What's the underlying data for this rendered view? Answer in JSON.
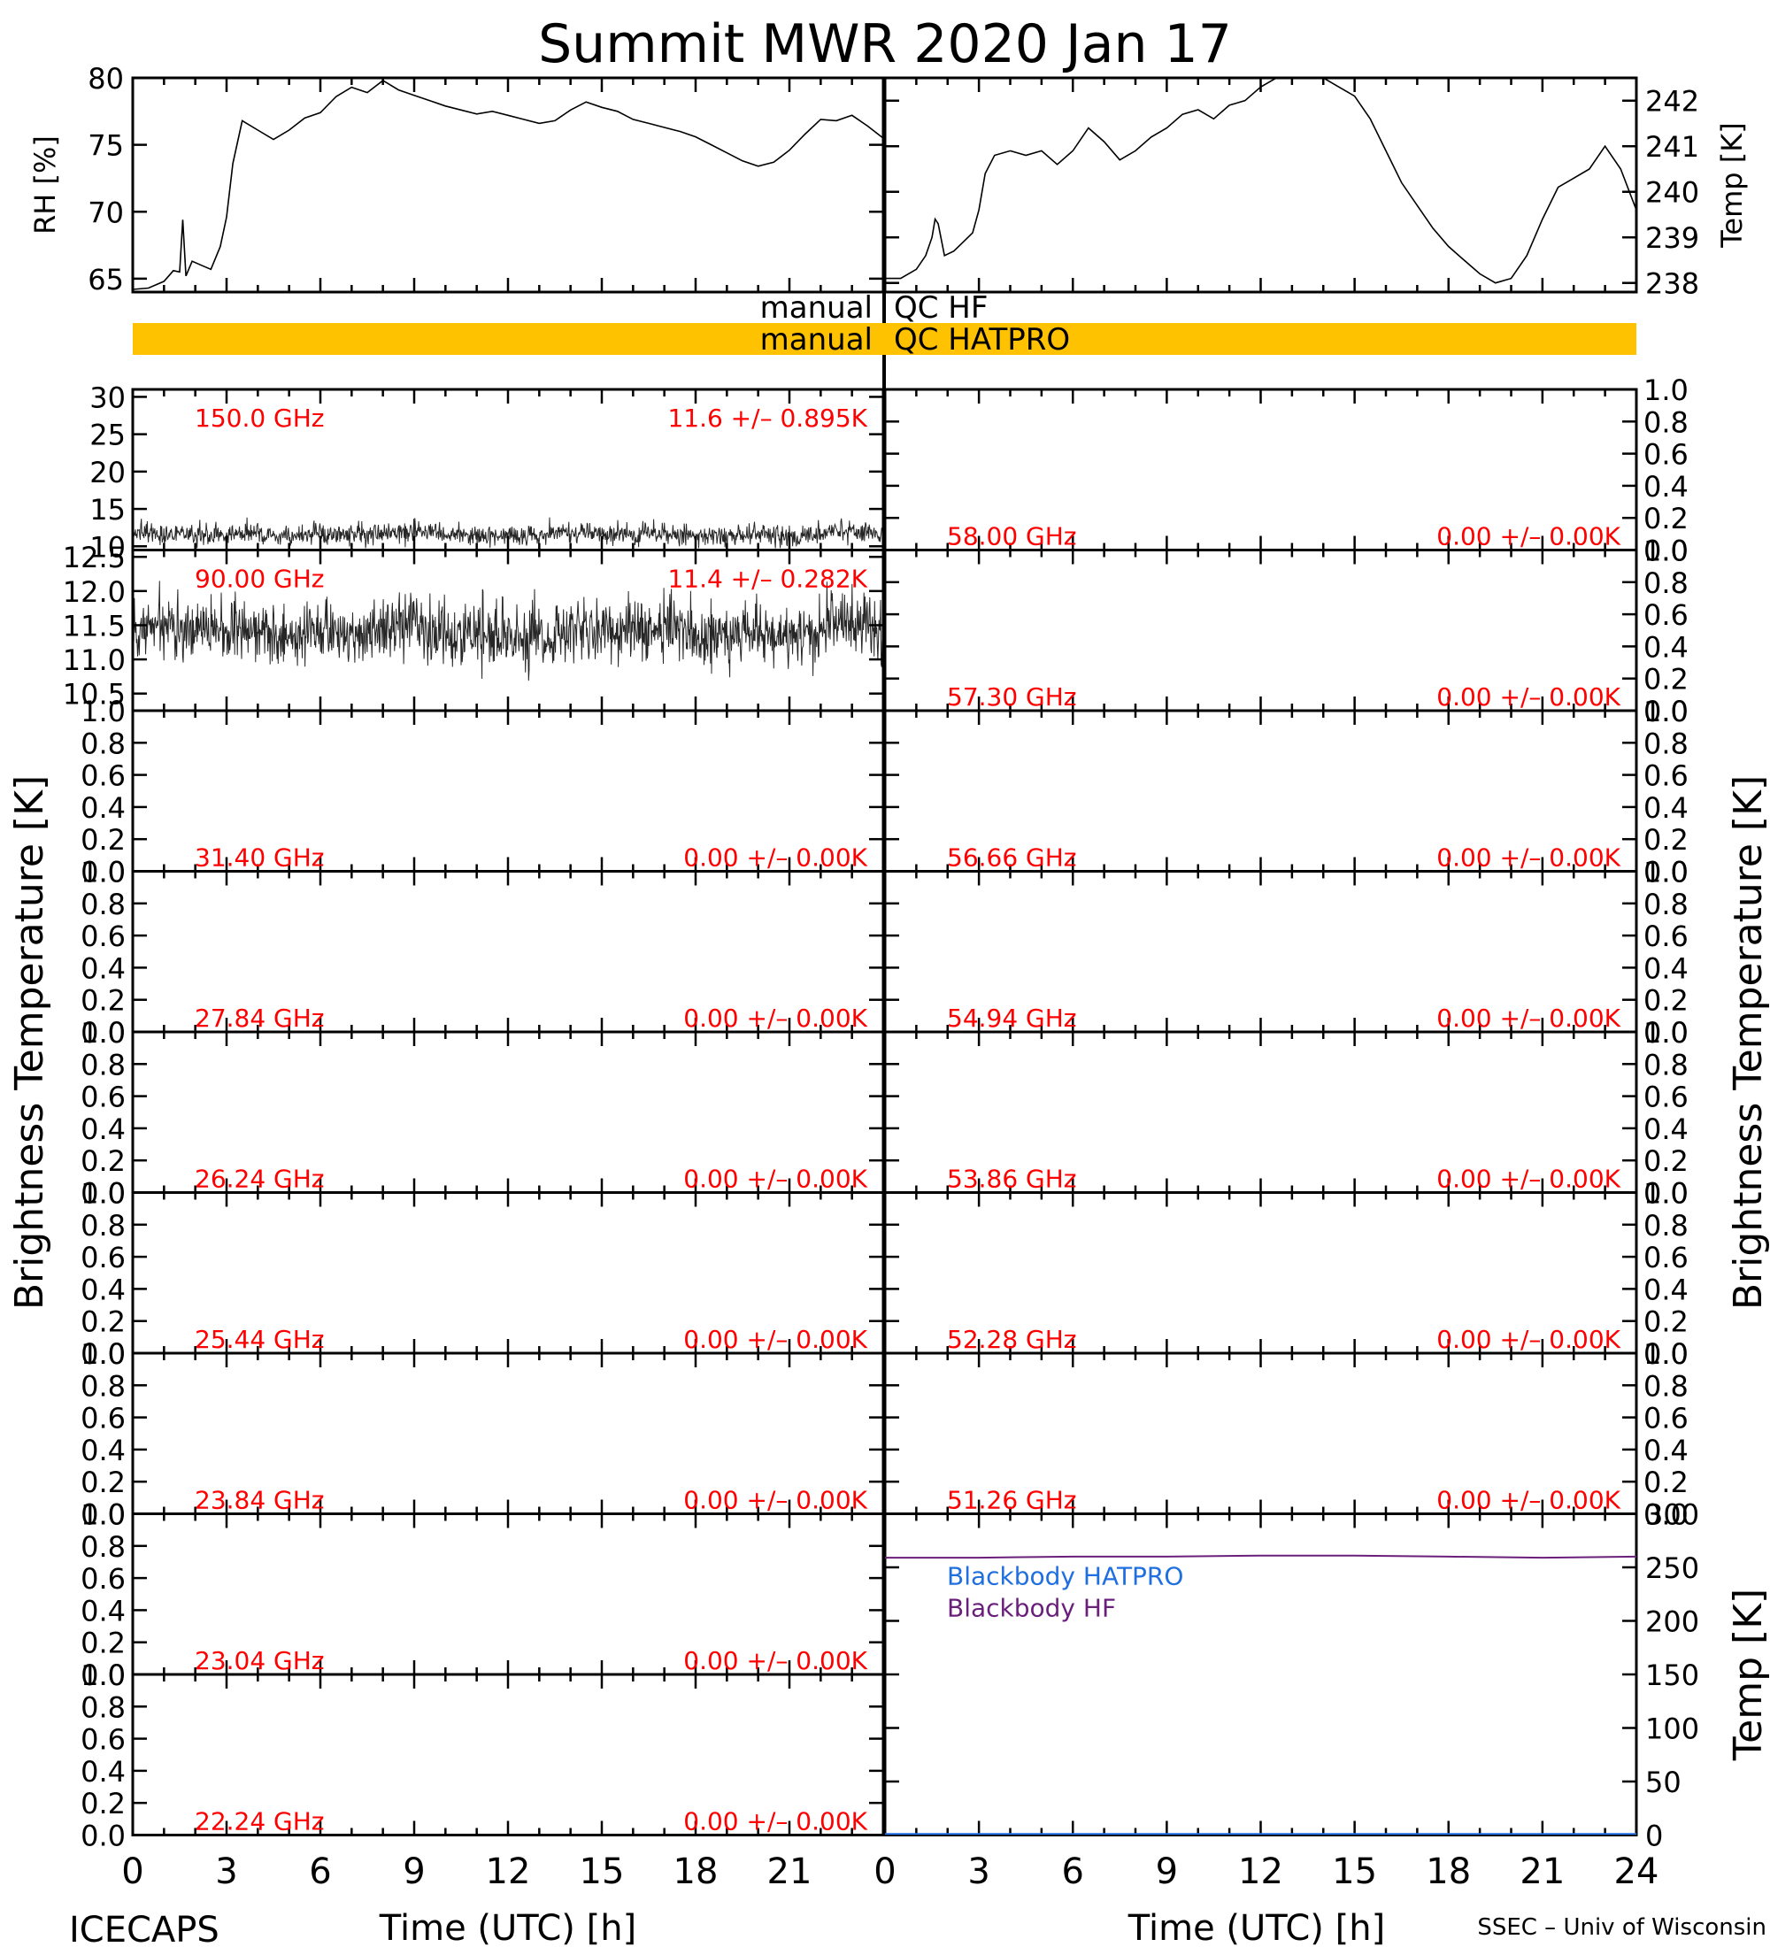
{
  "figure": {
    "title": "Summit MWR 2020 Jan 17",
    "footer_left": "ICECAPS",
    "footer_right": "SSEC – Univ of Wisconsin",
    "left_ylabel": "Brightness Temperature [K]",
    "right_ylabel": "Brightness Temperature [K]",
    "xlabel": "Time (UTC) [h]",
    "text_color": "#ff0000",
    "qc_color": "#ffc200"
  },
  "chart_data": [
    {
      "id": "met",
      "type": "line",
      "xlabel": "Time (UTC) [h]",
      "xlim": [
        0,
        24
      ],
      "x_ticks": [
        "0",
        "3",
        "6",
        "9",
        "12",
        "15",
        "18",
        "21",
        "24"
      ],
      "left_axis": {
        "label": "RH [%]",
        "ylim": [
          64,
          80
        ],
        "ticks": [
          "65",
          "70",
          "75",
          "80"
        ]
      },
      "right_axis": {
        "label": "Temp [K]",
        "ylim": [
          237.8,
          242.5
        ],
        "ticks": [
          "238",
          "239",
          "240",
          "241",
          "242"
        ]
      },
      "series": [
        {
          "color": "#000000",
          "panel": "left",
          "x": [
            0,
            0.5,
            1,
            1.3,
            1.5,
            1.6,
            1.7,
            1.9,
            2.2,
            2.5,
            2.8,
            3.0,
            3.2,
            3.5,
            4,
            4.5,
            5,
            5.5,
            6,
            6.5,
            7,
            7.5,
            8,
            8.5,
            9,
            9.5,
            10,
            10.5,
            11,
            11.5,
            12,
            12.5,
            13,
            13.5,
            14,
            14.5,
            15,
            15.5,
            16,
            16.5,
            17,
            17.5,
            18,
            18.5,
            19,
            19.5,
            20,
            20.5,
            21,
            21.5,
            22,
            22.5,
            23,
            23.5,
            24
          ],
          "y": [
            64.2,
            64.3,
            64.8,
            65.6,
            65.5,
            69.4,
            65.2,
            66.3,
            66.0,
            65.7,
            67.4,
            69.6,
            73.6,
            76.8,
            76.1,
            75.4,
            76.1,
            77.0,
            77.4,
            78.6,
            79.3,
            78.9,
            79.8,
            79.1,
            78.7,
            78.3,
            77.9,
            77.6,
            77.3,
            77.5,
            77.2,
            76.9,
            76.6,
            76.8,
            77.6,
            78.2,
            77.8,
            77.5,
            76.9,
            76.6,
            76.3,
            76.0,
            75.6,
            75.0,
            74.4,
            73.8,
            73.4,
            73.7,
            74.6,
            75.8,
            76.9,
            76.8,
            77.2,
            76.4,
            75.5
          ]
        },
        {
          "color": "#000000",
          "panel": "right",
          "x": [
            0,
            0.5,
            1,
            1.3,
            1.5,
            1.6,
            1.7,
            1.9,
            2.2,
            2.5,
            2.8,
            3.0,
            3.2,
            3.5,
            4,
            4.5,
            5,
            5.5,
            6,
            6.5,
            7,
            7.5,
            8,
            8.5,
            9,
            9.5,
            10,
            10.5,
            11,
            11.5,
            12,
            12.5,
            13,
            13.5,
            14,
            14.5,
            15,
            15.5,
            16,
            16.5,
            17,
            17.5,
            18,
            18.5,
            19,
            19.5,
            20,
            20.5,
            21,
            21.5,
            22,
            22.5,
            23,
            23.5,
            24
          ],
          "y": [
            238.1,
            238.1,
            238.3,
            238.6,
            239.0,
            239.4,
            239.3,
            238.6,
            238.7,
            238.9,
            239.1,
            239.6,
            240.4,
            240.8,
            240.9,
            240.8,
            240.9,
            240.6,
            240.9,
            241.4,
            241.1,
            240.7,
            240.9,
            241.2,
            241.4,
            241.7,
            241.8,
            241.6,
            241.9,
            242.0,
            242.3,
            242.6,
            242.8,
            242.9,
            242.5,
            242.3,
            242.1,
            241.6,
            240.9,
            240.2,
            239.7,
            239.2,
            238.8,
            238.5,
            238.2,
            238.0,
            238.1,
            238.6,
            239.4,
            240.1,
            240.3,
            240.5,
            241.0,
            240.5,
            239.6
          ]
        }
      ]
    },
    {
      "id": "qc",
      "type": "table",
      "rows": [
        {
          "left": "manual",
          "right": "QC HF",
          "filled": false
        },
        {
          "left": "manual",
          "right": "QC HATPRO",
          "filled": true,
          "color": "#ffc200"
        }
      ]
    },
    {
      "id": "tb-left",
      "type": "scatter",
      "xlim": [
        0,
        24
      ],
      "x_ticks": [
        "0",
        "3",
        "6",
        "9",
        "12",
        "15",
        "18",
        "21"
      ],
      "panels": [
        {
          "freq": "150.0 GHz",
          "stats": "11.6 +/– 0.895K",
          "ylim": [
            9.5,
            31
          ],
          "ticks": [
            "10",
            "15",
            "20",
            "25",
            "30"
          ],
          "has_data": true,
          "mean": 11.6,
          "std": 0.895,
          "spread": 1.2
        },
        {
          "freq": "90.00 GHz",
          "stats": "11.4 +/– 0.282K",
          "ylim": [
            10.25,
            12.6
          ],
          "ticks": [
            "10.5",
            "11.0",
            "11.5",
            "12.0",
            "12.5"
          ],
          "has_data": true,
          "mean": 11.4,
          "std": 0.282,
          "spread": 0.45
        },
        {
          "freq": "31.40 GHz",
          "stats": "0.00 +/– 0.00K",
          "ylim": [
            0,
            1
          ],
          "ticks": [
            "0.0",
            "0.2",
            "0.4",
            "0.6",
            "0.8",
            "1.0"
          ],
          "has_data": false
        },
        {
          "freq": "27.84 GHz",
          "stats": "0.00 +/– 0.00K",
          "ylim": [
            0,
            1
          ],
          "ticks": [
            "0.0",
            "0.2",
            "0.4",
            "0.6",
            "0.8",
            "1.0"
          ],
          "has_data": false
        },
        {
          "freq": "26.24 GHz",
          "stats": "0.00 +/– 0.00K",
          "ylim": [
            0,
            1
          ],
          "ticks": [
            "0.0",
            "0.2",
            "0.4",
            "0.6",
            "0.8",
            "1.0"
          ],
          "has_data": false
        },
        {
          "freq": "25.44 GHz",
          "stats": "0.00 +/– 0.00K",
          "ylim": [
            0,
            1
          ],
          "ticks": [
            "0.0",
            "0.2",
            "0.4",
            "0.6",
            "0.8",
            "1.0"
          ],
          "has_data": false
        },
        {
          "freq": "23.84 GHz",
          "stats": "0.00 +/– 0.00K",
          "ylim": [
            0,
            1
          ],
          "ticks": [
            "0.0",
            "0.2",
            "0.4",
            "0.6",
            "0.8",
            "1.0"
          ],
          "has_data": false
        },
        {
          "freq": "23.04 GHz",
          "stats": "0.00 +/– 0.00K",
          "ylim": [
            0,
            1
          ],
          "ticks": [
            "0.0",
            "0.2",
            "0.4",
            "0.6",
            "0.8",
            "1.0"
          ],
          "has_data": false
        },
        {
          "freq": "22.24 GHz",
          "stats": "0.00 +/– 0.00K",
          "ylim": [
            0,
            1
          ],
          "ticks": [
            "0.0",
            "0.2",
            "0.4",
            "0.6",
            "0.8",
            "1.0"
          ],
          "has_data": false
        }
      ]
    },
    {
      "id": "tb-right",
      "type": "scatter",
      "xlim": [
        0,
        24
      ],
      "x_ticks": [
        "0",
        "3",
        "6",
        "9",
        "12",
        "15",
        "18",
        "21",
        "24"
      ],
      "panels": [
        {
          "freq": "58.00 GHz",
          "stats": "0.00 +/– 0.00K",
          "ylim": [
            0,
            1
          ],
          "ticks": [
            "0.0",
            "0.2",
            "0.4",
            "0.6",
            "0.8",
            "1.0"
          ],
          "has_data": false
        },
        {
          "freq": "57.30 GHz",
          "stats": "0.00 +/– 0.00K",
          "ylim": [
            0,
            1
          ],
          "ticks": [
            "0.0",
            "0.2",
            "0.4",
            "0.6",
            "0.8",
            "1.0"
          ],
          "has_data": false
        },
        {
          "freq": "56.66 GHz",
          "stats": "0.00 +/– 0.00K",
          "ylim": [
            0,
            1
          ],
          "ticks": [
            "0.0",
            "0.2",
            "0.4",
            "0.6",
            "0.8",
            "1.0"
          ],
          "has_data": false
        },
        {
          "freq": "54.94 GHz",
          "stats": "0.00 +/– 0.00K",
          "ylim": [
            0,
            1
          ],
          "ticks": [
            "0.0",
            "0.2",
            "0.4",
            "0.6",
            "0.8",
            "1.0"
          ],
          "has_data": false
        },
        {
          "freq": "53.86 GHz",
          "stats": "0.00 +/– 0.00K",
          "ylim": [
            0,
            1
          ],
          "ticks": [
            "0.0",
            "0.2",
            "0.4",
            "0.6",
            "0.8",
            "1.0"
          ],
          "has_data": false
        },
        {
          "freq": "52.28 GHz",
          "stats": "0.00 +/– 0.00K",
          "ylim": [
            0,
            1
          ],
          "ticks": [
            "0.0",
            "0.2",
            "0.4",
            "0.6",
            "0.8",
            "1.0"
          ],
          "has_data": false
        },
        {
          "freq": "51.26 GHz",
          "stats": "0.00 +/– 0.00K",
          "ylim": [
            0,
            1
          ],
          "ticks": [
            "0.0",
            "0.2",
            "0.4",
            "0.6",
            "0.8",
            "1.0"
          ],
          "has_data": false
        }
      ]
    },
    {
      "id": "blackbody",
      "type": "line",
      "xlim": [
        0,
        24
      ],
      "ylim": [
        0,
        300
      ],
      "ylabel": "Temp [K]",
      "ticks": [
        "0",
        "50",
        "100",
        "150",
        "200",
        "250",
        "300"
      ],
      "series": [
        {
          "name": "Blackbody HATPRO",
          "color": "#1f6fe0",
          "x": [
            0,
            24
          ],
          "y": [
            1,
            1
          ]
        },
        {
          "name": "Blackbody HF",
          "color": "#6a1f7a",
          "x": [
            0,
            3,
            6,
            9,
            12,
            15,
            18,
            21,
            24
          ],
          "y": [
            259,
            259,
            260,
            260,
            261,
            261,
            260,
            259,
            260
          ]
        }
      ]
    }
  ]
}
